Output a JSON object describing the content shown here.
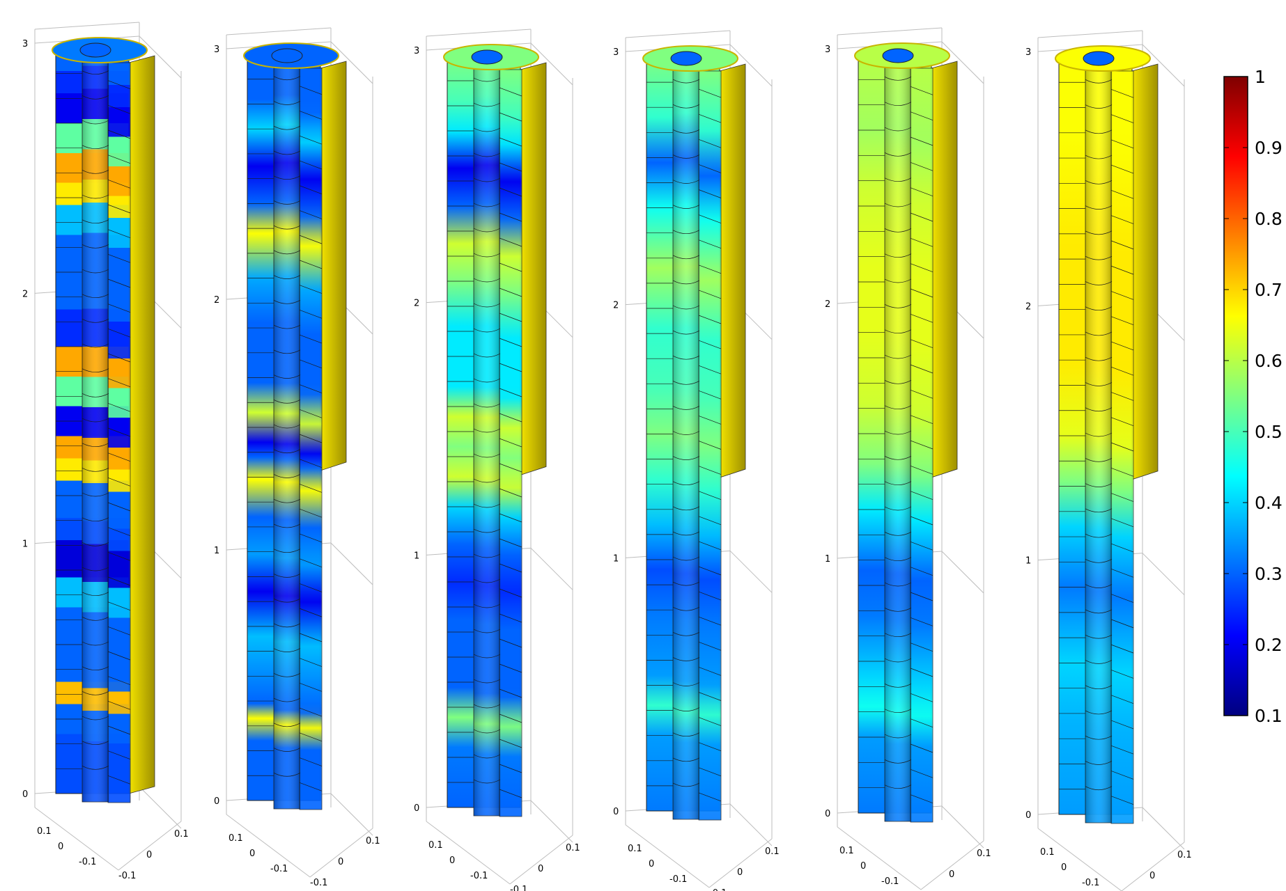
{
  "colorbar": {
    "min": 0.1,
    "max": 1,
    "tick_labels": [
      "1",
      "0.9",
      "0.8",
      "0.7",
      "0.6",
      "0.5",
      "0.4",
      "0.3",
      "0.2",
      "0.1"
    ],
    "colormap_stops": [
      "#00007f",
      "#0000ff",
      "#0080ff",
      "#00ffff",
      "#80ff80",
      "#ffff00",
      "#ff8000",
      "#ff0000",
      "#7f0000"
    ]
  },
  "axes": {
    "z_tick_labels": [
      "0",
      "1",
      "2",
      "3"
    ],
    "x_tick_labels": [
      "0.1",
      "0",
      "-0.1"
    ],
    "y_tick_labels": [
      "-0.1",
      "0",
      "0.1"
    ]
  },
  "panels": [
    {
      "name": "panel-1",
      "rim_color": "#c8b400",
      "bands": [
        {
          "from": 0.0,
          "to": 0.08,
          "value": 0.28
        },
        {
          "from": 0.08,
          "to": 0.12,
          "value": 0.3
        },
        {
          "from": 0.12,
          "to": 0.15,
          "value": 0.72
        },
        {
          "from": 0.15,
          "to": 0.25,
          "value": 0.3
        },
        {
          "from": 0.25,
          "to": 0.29,
          "value": 0.38
        },
        {
          "from": 0.29,
          "to": 0.34,
          "value": 0.18
        },
        {
          "from": 0.34,
          "to": 0.37,
          "value": 0.28
        },
        {
          "from": 0.37,
          "to": 0.42,
          "value": 0.3
        },
        {
          "from": 0.42,
          "to": 0.45,
          "value": 0.68
        },
        {
          "from": 0.45,
          "to": 0.48,
          "value": 0.74
        },
        {
          "from": 0.48,
          "to": 0.52,
          "value": 0.2
        },
        {
          "from": 0.52,
          "to": 0.56,
          "value": 0.52
        },
        {
          "from": 0.56,
          "to": 0.6,
          "value": 0.74
        },
        {
          "from": 0.6,
          "to": 0.65,
          "value": 0.25
        },
        {
          "from": 0.65,
          "to": 0.7,
          "value": 0.3
        },
        {
          "from": 0.7,
          "to": 0.75,
          "value": 0.3
        },
        {
          "from": 0.75,
          "to": 0.79,
          "value": 0.38
        },
        {
          "from": 0.79,
          "to": 0.82,
          "value": 0.68
        },
        {
          "from": 0.82,
          "to": 0.86,
          "value": 0.74
        },
        {
          "from": 0.86,
          "to": 0.9,
          "value": 0.52
        },
        {
          "from": 0.9,
          "to": 0.94,
          "value": 0.2
        },
        {
          "from": 0.94,
          "to": 0.97,
          "value": 0.25
        },
        {
          "from": 0.97,
          "to": 1.0,
          "value": 0.3
        }
      ]
    },
    {
      "name": "panel-2",
      "rim_color": "#c8b400",
      "gradient": [
        {
          "pos": 0.0,
          "value": 0.3
        },
        {
          "pos": 0.08,
          "value": 0.3
        },
        {
          "pos": 0.11,
          "value": 0.66
        },
        {
          "pos": 0.13,
          "value": 0.3
        },
        {
          "pos": 0.22,
          "value": 0.38
        },
        {
          "pos": 0.28,
          "value": 0.2
        },
        {
          "pos": 0.33,
          "value": 0.35
        },
        {
          "pos": 0.38,
          "value": 0.3
        },
        {
          "pos": 0.43,
          "value": 0.66
        },
        {
          "pos": 0.46,
          "value": 0.3
        },
        {
          "pos": 0.48,
          "value": 0.2
        },
        {
          "pos": 0.52,
          "value": 0.62
        },
        {
          "pos": 0.56,
          "value": 0.3
        },
        {
          "pos": 0.64,
          "value": 0.3
        },
        {
          "pos": 0.7,
          "value": 0.36
        },
        {
          "pos": 0.76,
          "value": 0.66
        },
        {
          "pos": 0.8,
          "value": 0.3
        },
        {
          "pos": 0.85,
          "value": 0.2
        },
        {
          "pos": 0.9,
          "value": 0.4
        },
        {
          "pos": 0.94,
          "value": 0.3
        },
        {
          "pos": 1.0,
          "value": 0.3
        }
      ]
    },
    {
      "name": "panel-3",
      "rim_color": "#c8b400",
      "gradient": [
        {
          "pos": 0.0,
          "value": 0.3
        },
        {
          "pos": 0.08,
          "value": 0.32
        },
        {
          "pos": 0.12,
          "value": 0.55
        },
        {
          "pos": 0.16,
          "value": 0.3
        },
        {
          "pos": 0.25,
          "value": 0.3
        },
        {
          "pos": 0.3,
          "value": 0.25
        },
        {
          "pos": 0.35,
          "value": 0.3
        },
        {
          "pos": 0.4,
          "value": 0.4
        },
        {
          "pos": 0.44,
          "value": 0.62
        },
        {
          "pos": 0.48,
          "value": 0.55
        },
        {
          "pos": 0.52,
          "value": 0.62
        },
        {
          "pos": 0.56,
          "value": 0.42
        },
        {
          "pos": 0.64,
          "value": 0.42
        },
        {
          "pos": 0.7,
          "value": 0.55
        },
        {
          "pos": 0.75,
          "value": 0.62
        },
        {
          "pos": 0.8,
          "value": 0.3
        },
        {
          "pos": 0.85,
          "value": 0.2
        },
        {
          "pos": 0.9,
          "value": 0.42
        },
        {
          "pos": 0.94,
          "value": 0.5
        },
        {
          "pos": 1.0,
          "value": 0.55
        }
      ]
    },
    {
      "name": "panel-4",
      "rim_color": "#c8b400",
      "gradient": [
        {
          "pos": 0.0,
          "value": 0.32
        },
        {
          "pos": 0.1,
          "value": 0.35
        },
        {
          "pos": 0.14,
          "value": 0.48
        },
        {
          "pos": 0.18,
          "value": 0.35
        },
        {
          "pos": 0.26,
          "value": 0.32
        },
        {
          "pos": 0.32,
          "value": 0.28
        },
        {
          "pos": 0.38,
          "value": 0.38
        },
        {
          "pos": 0.44,
          "value": 0.48
        },
        {
          "pos": 0.5,
          "value": 0.55
        },
        {
          "pos": 0.56,
          "value": 0.5
        },
        {
          "pos": 0.64,
          "value": 0.48
        },
        {
          "pos": 0.72,
          "value": 0.58
        },
        {
          "pos": 0.8,
          "value": 0.45
        },
        {
          "pos": 0.86,
          "value": 0.3
        },
        {
          "pos": 0.92,
          "value": 0.48
        },
        {
          "pos": 1.0,
          "value": 0.55
        }
      ]
    },
    {
      "name": "panel-5",
      "rim_color": "#c8b400",
      "gradient": [
        {
          "pos": 0.0,
          "value": 0.32
        },
        {
          "pos": 0.1,
          "value": 0.35
        },
        {
          "pos": 0.14,
          "value": 0.45
        },
        {
          "pos": 0.18,
          "value": 0.4
        },
        {
          "pos": 0.26,
          "value": 0.32
        },
        {
          "pos": 0.32,
          "value": 0.3
        },
        {
          "pos": 0.4,
          "value": 0.42
        },
        {
          "pos": 0.46,
          "value": 0.55
        },
        {
          "pos": 0.54,
          "value": 0.62
        },
        {
          "pos": 0.64,
          "value": 0.64
        },
        {
          "pos": 0.72,
          "value": 0.64
        },
        {
          "pos": 0.82,
          "value": 0.62
        },
        {
          "pos": 0.9,
          "value": 0.58
        },
        {
          "pos": 1.0,
          "value": 0.6
        }
      ]
    },
    {
      "name": "panel-6",
      "rim_color": "#c8b400",
      "gradient": [
        {
          "pos": 0.0,
          "value": 0.35
        },
        {
          "pos": 0.12,
          "value": 0.37
        },
        {
          "pos": 0.2,
          "value": 0.4
        },
        {
          "pos": 0.3,
          "value": 0.32
        },
        {
          "pos": 0.38,
          "value": 0.4
        },
        {
          "pos": 0.44,
          "value": 0.55
        },
        {
          "pos": 0.5,
          "value": 0.64
        },
        {
          "pos": 0.6,
          "value": 0.68
        },
        {
          "pos": 0.75,
          "value": 0.68
        },
        {
          "pos": 0.9,
          "value": 0.66
        },
        {
          "pos": 1.0,
          "value": 0.66
        }
      ]
    }
  ]
}
